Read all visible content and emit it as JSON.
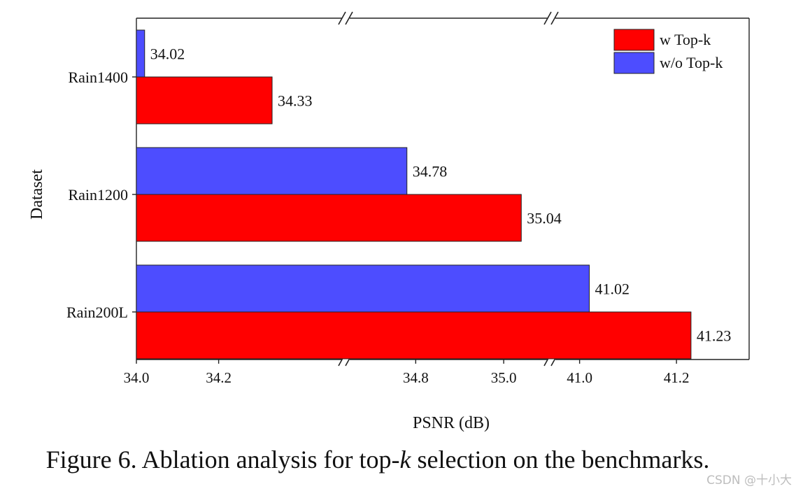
{
  "chart_data": {
    "type": "bar",
    "orientation": "horizontal",
    "categories": [
      "Rain1400",
      "Rain1200",
      "Rain200L"
    ],
    "series": [
      {
        "name": "w/o Top-k",
        "color": "#4d4dff",
        "values": [
          34.02,
          34.78,
          41.02
        ]
      },
      {
        "name": "w Top-k",
        "color": "#ff0000",
        "values": [
          34.33,
          35.04,
          41.23
        ]
      }
    ],
    "data_labels": {
      "w/o Top-k": [
        "34.02",
        "34.78",
        "41.02"
      ],
      "w Top-k": [
        "34.33",
        "35.04",
        "41.23"
      ]
    },
    "xlabel": "PSNR (dB)",
    "ylabel": "Dataset",
    "x_axis_broken": true,
    "x_segments": [
      {
        "range": [
          34.0,
          34.5
        ],
        "ticks": [
          {
            "v": 34.0,
            "label": "34.0"
          },
          {
            "v": 34.2,
            "label": "34.2"
          }
        ]
      },
      {
        "range": [
          34.65,
          35.1
        ],
        "ticks": [
          {
            "v": 34.8,
            "label": "34.8"
          },
          {
            "v": 35.0,
            "label": "35.0"
          }
        ]
      },
      {
        "range": [
          40.95,
          41.35
        ],
        "ticks": [
          {
            "v": 41.0,
            "label": "41.0"
          },
          {
            "v": 41.2,
            "label": "41.2"
          }
        ]
      }
    ],
    "legend": {
      "placement": "top-right",
      "order": [
        "w Top-k",
        "w/o Top-k"
      ]
    },
    "grid": false
  },
  "caption": {
    "prefix": "Figure 6.  Ablation analysis for top-",
    "k": "k",
    "suffix": " selection on the benchmarks."
  },
  "watermark": "CSDN @十小大"
}
